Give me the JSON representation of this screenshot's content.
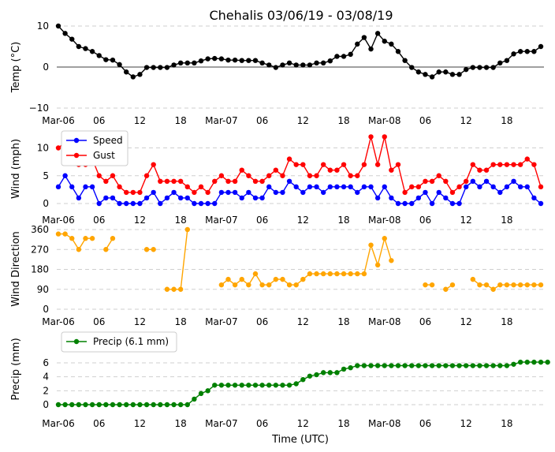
{
  "title": "Chehalis 03/06/19 - 03/08/19",
  "xlabel": "Time (UTC)",
  "x_tick_labels": [
    "Mar-06",
    "06",
    "12",
    "18",
    "Mar-07",
    "06",
    "12",
    "18",
    "Mar-08",
    "06",
    "12",
    "18"
  ],
  "colors": {
    "temp": "#000000",
    "speed": "#0000ff",
    "gust": "#ff0000",
    "direction": "#ffa500",
    "precip": "#008000"
  },
  "chart_data": [
    {
      "type": "line",
      "title": "Chehalis 03/06/19 - 03/08/19",
      "ylabel": "Temp (°C)",
      "ylim": [
        -10,
        10
      ],
      "yticks": [
        "10",
        "0",
        "−10"
      ],
      "x_hours": {
        "start": 0,
        "step": 1
      },
      "series": [
        {
          "name": "Temp",
          "values": [
            10,
            8.2,
            6.8,
            5,
            4.5,
            3.8,
            2.8,
            1.8,
            1.7,
            0.6,
            -1.2,
            -2.4,
            -1.8,
            -0.1,
            -0.1,
            -0.1,
            -0.1,
            0.5,
            1,
            1,
            1,
            1.5,
            2,
            2.1,
            2,
            1.7,
            1.7,
            1.6,
            1.6,
            1.6,
            1,
            0.5,
            -0.1,
            0.5,
            1,
            0.5,
            0.5,
            0.5,
            1,
            1,
            1.5,
            2.6,
            2.6,
            3.1,
            5.6,
            7.2,
            4.4,
            8.2,
            6.3,
            5.6,
            3.8,
            1.6,
            -0.1,
            -1.2,
            -1.8,
            -2.4,
            -1.2,
            -1.2,
            -1.8,
            -1.8,
            -0.6,
            -0.1,
            -0.1,
            -0.1,
            -0.1,
            1,
            1.6,
            3.2,
            3.8,
            3.8,
            3.8,
            5
          ]
        }
      ]
    },
    {
      "type": "line",
      "ylabel": "Wind (mph)",
      "ylim": [
        0,
        13
      ],
      "yticks": [
        "10",
        "5",
        "0"
      ],
      "legend": "upper-left",
      "series": [
        {
          "name": "Speed",
          "values": [
            3,
            5,
            3,
            1,
            3,
            3,
            0,
            1,
            1,
            0,
            0,
            0,
            0,
            1,
            2,
            0,
            1,
            2,
            1,
            1,
            0,
            0,
            0,
            0,
            2,
            2,
            2,
            1,
            2,
            1,
            1,
            3,
            2,
            2,
            4,
            3,
            2,
            3,
            3,
            2,
            3,
            3,
            3,
            3,
            2,
            3,
            3,
            1,
            3,
            1,
            0,
            0,
            0,
            1,
            2,
            0,
            2,
            1,
            0,
            0,
            3,
            4,
            3,
            4,
            3,
            2,
            3,
            4,
            3,
            3,
            1,
            0
          ]
        },
        {
          "name": "Gust",
          "values": [
            10,
            11,
            11,
            7,
            7,
            8,
            5,
            4,
            5,
            3,
            2,
            2,
            2,
            5,
            7,
            4,
            4,
            4,
            4,
            3,
            2,
            3,
            2,
            4,
            5,
            4,
            4,
            6,
            5,
            4,
            4,
            5,
            6,
            5,
            8,
            7,
            7,
            5,
            5,
            7,
            6,
            6,
            7,
            5,
            5,
            7,
            12,
            7,
            12,
            6,
            7,
            2,
            3,
            3,
            4,
            4,
            5,
            4,
            2,
            3,
            4,
            7,
            6,
            6,
            7,
            7,
            7,
            7,
            7,
            8,
            7,
            3
          ]
        }
      ]
    },
    {
      "type": "scatter",
      "ylabel": "Wind Direction",
      "ylim": [
        0,
        360
      ],
      "yticks": [
        "360",
        "270",
        "180",
        "90",
        "0"
      ],
      "series": [
        {
          "name": "Direction",
          "values": [
            340,
            340,
            320,
            270,
            320,
            320,
            null,
            270,
            320,
            null,
            null,
            null,
            null,
            270,
            270,
            null,
            90,
            90,
            90,
            360,
            null,
            null,
            null,
            null,
            110,
            135,
            110,
            135,
            110,
            160,
            110,
            110,
            135,
            135,
            110,
            110,
            135,
            160,
            160,
            160,
            160,
            160,
            160,
            160,
            160,
            160,
            290,
            200,
            320,
            220,
            null,
            null,
            null,
            null,
            110,
            110,
            null,
            90,
            110,
            null,
            null,
            135,
            110,
            110,
            90,
            110,
            110,
            110,
            110,
            110,
            110,
            110
          ]
        }
      ]
    },
    {
      "type": "line",
      "ylabel": "Precip (mm)",
      "ylim": [
        -0.3,
        6.6
      ],
      "yticks": [
        "6",
        "4",
        "2",
        "0"
      ],
      "legend": "upper-left",
      "series": [
        {
          "name": "Precip (6.1 mm)",
          "values": [
            0,
            0,
            0,
            0,
            0,
            0,
            0,
            0,
            0,
            0,
            0,
            0,
            0,
            0,
            0,
            0,
            0,
            0,
            0,
            0,
            0.8,
            1.6,
            2.0,
            2.8,
            2.8,
            2.8,
            2.8,
            2.8,
            2.8,
            2.8,
            2.8,
            2.8,
            2.8,
            2.8,
            2.8,
            3.0,
            3.6,
            4.1,
            4.3,
            4.6,
            4.6,
            4.6,
            5.1,
            5.3,
            5.6,
            5.6,
            5.6,
            5.6,
            5.6,
            5.6,
            5.6,
            5.6,
            5.6,
            5.6,
            5.6,
            5.6,
            5.6,
            5.6,
            5.6,
            5.6,
            5.6,
            5.6,
            5.6,
            5.6,
            5.6,
            5.6,
            5.6,
            5.8,
            6.1,
            6.1,
            6.1,
            6.1,
            6.1
          ]
        }
      ]
    }
  ]
}
